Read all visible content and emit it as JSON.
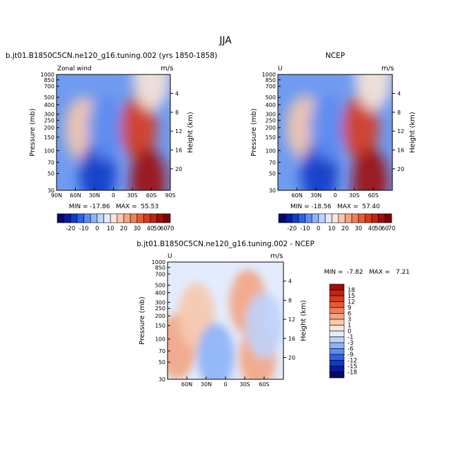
{
  "figure": {
    "title": "JJA"
  },
  "chart_data": [
    {
      "type": "heatmap",
      "title": "b.jt01.B1850C5CN.ne120_g16.tuning.002 (yrs 1850-1858)",
      "left_label": "Zonal wind",
      "right_label": "m/s",
      "ylabel": "Pressure (mb)",
      "ylabel_right": "Height (km)",
      "x_ticks": [
        "90N",
        "60N",
        "30N",
        "0",
        "30S",
        "60S",
        "90S"
      ],
      "x_values": [
        90,
        60,
        30,
        0,
        -30,
        -60,
        -90
      ],
      "y_ticks": [
        "30",
        "50",
        "70",
        "100",
        "150",
        "200",
        "250",
        "300",
        "400",
        "500",
        "700",
        "850",
        "1000"
      ],
      "y_values": [
        30,
        50,
        70,
        100,
        150,
        200,
        250,
        300,
        400,
        500,
        700,
        850,
        1000
      ],
      "height_ticks": [
        "4",
        "8",
        "12",
        "16",
        "20"
      ],
      "height_values": [
        4,
        8,
        12,
        16,
        20
      ],
      "xlim": [
        90,
        -90
      ],
      "ylim": [
        1000,
        30
      ],
      "y_scale": "log",
      "stats_text": "MIN = -17.86   MAX =  55.53",
      "min": -17.86,
      "max": 55.53,
      "features": [
        {
          "lat": 48,
          "p": 190,
          "value": 18
        },
        {
          "lat": 25,
          "p": 50,
          "value": -18
        },
        {
          "lat": 12,
          "p": 200,
          "value": -8
        },
        {
          "lat": -40,
          "p": 200,
          "value": 35
        },
        {
          "lat": -55,
          "p": 40,
          "value": 55
        },
        {
          "lat": -60,
          "p": 900,
          "value": 12
        }
      ]
    },
    {
      "type": "heatmap",
      "title": "NCEP",
      "left_label": "U",
      "right_label": "m/s",
      "ylabel": "Pressure (mb)",
      "ylabel_right": "Height (km)",
      "x_ticks": [
        "60N",
        "30N",
        "0",
        "30S",
        "60S"
      ],
      "x_values": [
        60,
        30,
        0,
        -30,
        -60
      ],
      "y_ticks": [
        "30",
        "50",
        "70",
        "100",
        "150",
        "200",
        "250",
        "300",
        "400",
        "500",
        "700",
        "850",
        "1000"
      ],
      "y_values": [
        30,
        50,
        70,
        100,
        150,
        200,
        250,
        300,
        400,
        500,
        700,
        850,
        1000
      ],
      "height_ticks": [
        "4",
        "8",
        "12",
        "16",
        "20"
      ],
      "height_values": [
        4,
        8,
        12,
        16,
        20
      ],
      "xlim": [
        90,
        -90
      ],
      "ylim": [
        1000,
        30
      ],
      "y_scale": "log",
      "stats_text": "MIN = -18.56   MAX =  57.40",
      "min": -18.56,
      "max": 57.4,
      "features": [
        {
          "lat": 48,
          "p": 200,
          "value": 17
        },
        {
          "lat": 25,
          "p": 50,
          "value": -19
        },
        {
          "lat": 12,
          "p": 200,
          "value": -9
        },
        {
          "lat": -40,
          "p": 200,
          "value": 37
        },
        {
          "lat": -55,
          "p": 40,
          "value": 57
        },
        {
          "lat": -60,
          "p": 900,
          "value": 10
        }
      ]
    },
    {
      "type": "heatmap",
      "title": "b.jt01.B1850C5CN.ne120_g16.tuning.002 - NCEP",
      "left_label": "U",
      "right_label": "m/s",
      "ylabel": "Pressure (mb)",
      "ylabel_right": "Height (km)",
      "x_ticks": [
        "60N",
        "30N",
        "0",
        "30S",
        "60S"
      ],
      "x_values": [
        60,
        30,
        0,
        -30,
        -60
      ],
      "y_ticks": [
        "30",
        "50",
        "70",
        "100",
        "150",
        "200",
        "250",
        "300",
        "400",
        "500",
        "700",
        "850",
        "1000"
      ],
      "y_values": [
        30,
        50,
        70,
        100,
        150,
        200,
        250,
        300,
        400,
        500,
        700,
        850,
        1000
      ],
      "height_ticks": [
        "4",
        "8",
        "12",
        "16",
        "20"
      ],
      "height_values": [
        4,
        8,
        12,
        16,
        20
      ],
      "xlim": [
        90,
        -90
      ],
      "ylim": [
        1000,
        30
      ],
      "y_scale": "log",
      "stats_text": "MIN =  -7.82   MAX =   7.21",
      "min": -7.82,
      "max": 7.21,
      "features": [
        {
          "lat": 75,
          "p": 80,
          "value": 3
        },
        {
          "lat": 45,
          "p": 200,
          "value": 2
        },
        {
          "lat": 15,
          "p": 60,
          "value": -4
        },
        {
          "lat": -35,
          "p": 300,
          "value": 3
        },
        {
          "lat": -50,
          "p": 60,
          "value": 5
        },
        {
          "lat": -60,
          "p": 150,
          "value": -3
        }
      ]
    }
  ],
  "colorbars": {
    "main": {
      "orientation": "horizontal",
      "labels": [
        "-20",
        "-10",
        "0",
        "10",
        "20",
        "30",
        "40",
        "50",
        "60",
        "70"
      ],
      "levels": [
        -25,
        -20,
        -15,
        -10,
        -5,
        0,
        5,
        10,
        15,
        20,
        25,
        30,
        35,
        40,
        50,
        60,
        70
      ],
      "colors": [
        "#08086b",
        "#0a1a9c",
        "#0f3bc8",
        "#2e62e6",
        "#5b8cf2",
        "#8db3f7",
        "#bcd3fb",
        "#e3ecfd",
        "#fbe5d8",
        "#f7c8ad",
        "#f3a583",
        "#ee8159",
        "#e75a35",
        "#d93a1c",
        "#c02312",
        "#9e0e09",
        "#780506"
      ]
    },
    "diff": {
      "orientation": "vertical",
      "labels": [
        "18",
        "15",
        "12",
        "9",
        "6",
        "3",
        "1",
        "0",
        "-1",
        "-3",
        "-6",
        "-9",
        "-12",
        "-15",
        "-18"
      ],
      "levels": [
        -18,
        -15,
        -12,
        -9,
        -6,
        -3,
        -1,
        0,
        1,
        3,
        6,
        9,
        12,
        15,
        18
      ],
      "colors": [
        "#08086b",
        "#0a1a9c",
        "#0f3bc8",
        "#2e62e6",
        "#5b8cf2",
        "#8db3f7",
        "#bcd3fb",
        "#e3ecfd",
        "#fbe5d8",
        "#f7c8ad",
        "#f3a583",
        "#ee8159",
        "#e75a35",
        "#d93a1c",
        "#c02312",
        "#9e0e09"
      ]
    }
  }
}
